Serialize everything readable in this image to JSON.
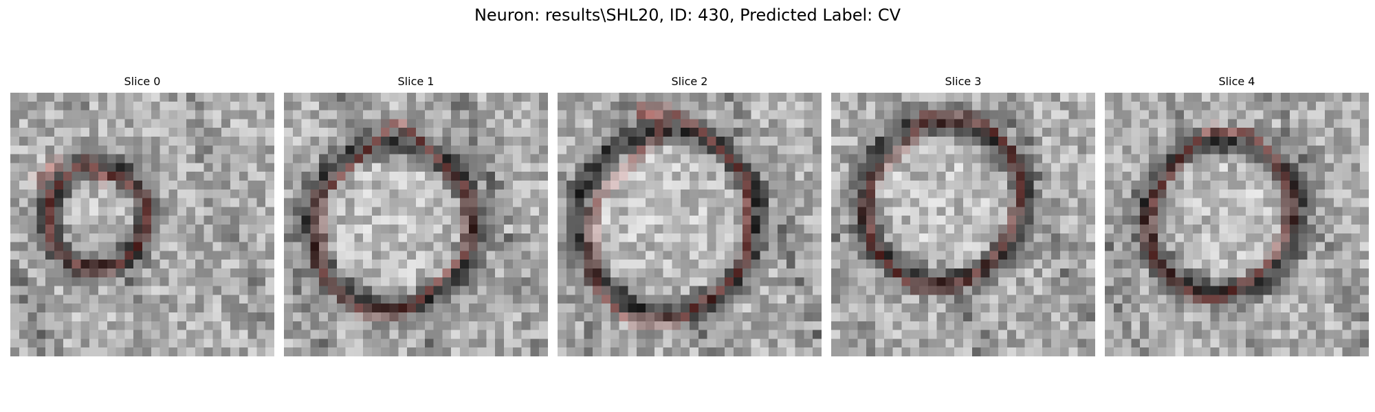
{
  "figure": {
    "title": "Neuron: results\\SHL20, ID: 430, Predicted Label: CV"
  },
  "overlay_color": "#e3120b",
  "panels": [
    {
      "title": "Slice 0",
      "contours": [
        [
          [
            10,
            9.5
          ],
          [
            10,
            10
          ],
          [
            11.5,
            9.5
          ],
          [
            12,
            9.5
          ],
          [
            13,
            10
          ],
          [
            14,
            10.5
          ],
          [
            15,
            11.5
          ],
          [
            15.5,
            13
          ],
          [
            15.5,
            15
          ],
          [
            15,
            16
          ],
          [
            15,
            17
          ],
          [
            14,
            18
          ],
          [
            13,
            19
          ],
          [
            12,
            20
          ],
          [
            11,
            20
          ],
          [
            10,
            20
          ],
          [
            9,
            20
          ],
          [
            8,
            20
          ],
          [
            7,
            19.5
          ],
          [
            6,
            18.5
          ],
          [
            5,
            17.5
          ],
          [
            4.5,
            16.5
          ],
          [
            4.5,
            15
          ],
          [
            4.5,
            13
          ],
          [
            4.5,
            11.5
          ],
          [
            5.5,
            10.5
          ],
          [
            6.5,
            9.5
          ],
          [
            7.5,
            8.5
          ],
          [
            8.5,
            8
          ],
          [
            9.5,
            8
          ]
        ],
        [
          [
            2.8,
            10
          ],
          [
            3.2,
            9.6
          ],
          [
            3.6,
            10
          ],
          [
            3.2,
            10.4
          ]
        ],
        [
          [
            4,
            9
          ],
          [
            4.4,
            8.6
          ],
          [
            4.8,
            9
          ],
          [
            4.4,
            9.4
          ]
        ],
        [
          [
            4.8,
            8.1
          ],
          [
            5.2,
            7.7
          ],
          [
            5.6,
            8.1
          ],
          [
            5.2,
            8.5
          ]
        ]
      ]
    },
    {
      "title": "Slice 1",
      "contours": [
        [
          [
            13,
            3.5
          ],
          [
            14.5,
            4.5
          ],
          [
            15.5,
            5.5
          ],
          [
            16.5,
            6.5
          ],
          [
            17.5,
            7.5
          ],
          [
            18.5,
            8.5
          ],
          [
            19,
            9.5
          ],
          [
            20,
            10.5
          ],
          [
            21,
            11
          ],
          [
            21,
            12.5
          ],
          [
            21,
            14
          ],
          [
            21,
            15.5
          ],
          [
            21,
            17
          ],
          [
            21,
            18
          ],
          [
            20,
            19
          ],
          [
            19,
            20
          ],
          [
            18,
            21
          ],
          [
            17,
            22
          ],
          [
            16,
            23
          ],
          [
            15,
            24
          ],
          [
            14,
            24.5
          ],
          [
            13,
            25
          ],
          [
            12,
            25
          ],
          [
            11,
            25
          ],
          [
            10,
            25
          ],
          [
            9,
            25
          ],
          [
            8,
            24.5
          ],
          [
            7,
            23.5
          ],
          [
            6,
            22.5
          ],
          [
            5,
            21.5
          ],
          [
            4.5,
            20.5
          ],
          [
            4,
            19.5
          ],
          [
            4,
            18.5
          ],
          [
            4,
            17
          ],
          [
            4,
            15
          ],
          [
            4,
            13
          ],
          [
            4,
            11.5
          ],
          [
            5,
            10.5
          ],
          [
            6,
            10
          ],
          [
            7,
            9
          ],
          [
            8,
            8
          ],
          [
            9,
            7
          ],
          [
            10,
            6
          ],
          [
            11,
            5
          ],
          [
            12,
            4
          ],
          [
            12.5,
            3
          ]
        ]
      ]
    },
    {
      "title": "Slice 2",
      "contours": [
        [
          [
            9,
            2
          ],
          [
            11,
            2
          ],
          [
            12,
            2
          ],
          [
            13,
            2
          ],
          [
            14,
            3
          ],
          [
            15,
            3.5
          ],
          [
            16,
            4
          ],
          [
            17,
            5
          ],
          [
            18,
            6
          ],
          [
            19,
            7
          ],
          [
            20,
            8
          ],
          [
            21,
            9
          ],
          [
            21.5,
            10
          ],
          [
            21.5,
            12
          ],
          [
            21.5,
            14
          ],
          [
            21.5,
            16
          ],
          [
            21.5,
            18
          ],
          [
            21,
            20
          ],
          [
            20,
            21
          ],
          [
            19,
            22
          ],
          [
            18,
            23
          ],
          [
            17,
            23.5
          ],
          [
            16,
            24
          ],
          [
            15,
            25
          ],
          [
            14,
            26
          ],
          [
            13,
            26
          ],
          [
            12,
            26
          ],
          [
            11,
            26
          ],
          [
            10,
            26
          ],
          [
            9,
            26
          ],
          [
            8,
            26
          ],
          [
            7,
            25
          ],
          [
            6,
            24
          ],
          [
            5,
            23
          ],
          [
            4.5,
            22
          ],
          [
            4,
            21
          ],
          [
            4,
            19.5
          ],
          [
            4,
            18
          ],
          [
            4,
            16
          ],
          [
            4,
            14
          ],
          [
            4.5,
            12.5
          ],
          [
            5,
            11.5
          ],
          [
            6,
            10.5
          ],
          [
            7,
            9.5
          ],
          [
            8,
            8.5
          ],
          [
            9,
            7
          ],
          [
            10,
            6.5
          ],
          [
            11,
            5.5
          ],
          [
            12,
            4
          ],
          [
            12,
            3
          ]
        ]
      ]
    },
    {
      "title": "Slice 3",
      "contours": [
        [
          [
            11,
            2.5
          ],
          [
            12,
            3
          ],
          [
            13,
            3
          ],
          [
            14,
            3
          ],
          [
            15,
            3
          ],
          [
            16,
            3
          ],
          [
            17,
            3.5
          ],
          [
            18,
            4
          ],
          [
            19,
            5
          ],
          [
            20,
            6
          ],
          [
            20.5,
            7
          ],
          [
            21,
            8.5
          ],
          [
            21.5,
            10
          ],
          [
            21.5,
            12
          ],
          [
            21,
            13.5
          ],
          [
            20.5,
            15
          ],
          [
            20,
            16.5
          ],
          [
            19,
            18
          ],
          [
            18,
            19.5
          ],
          [
            17,
            20.5
          ],
          [
            16,
            21
          ],
          [
            15,
            21.5
          ],
          [
            14,
            22
          ],
          [
            13,
            22
          ],
          [
            12,
            22
          ],
          [
            11,
            22
          ],
          [
            10,
            22
          ],
          [
            9,
            22
          ],
          [
            8,
            21
          ],
          [
            7,
            20
          ],
          [
            6,
            19
          ],
          [
            5,
            18
          ],
          [
            4.5,
            17
          ],
          [
            4.5,
            15.5
          ],
          [
            4,
            14
          ],
          [
            4,
            12.5
          ],
          [
            4.5,
            11
          ],
          [
            5,
            9.5
          ],
          [
            6,
            8.5
          ],
          [
            7,
            7.5
          ],
          [
            8,
            6.5
          ],
          [
            9,
            5.5
          ],
          [
            10,
            4
          ],
          [
            10,
            3
          ]
        ]
      ]
    },
    {
      "title": "Slice 4",
      "contours": [
        [
          [
            12,
            4
          ],
          [
            13.5,
            4.5
          ],
          [
            15,
            4.5
          ],
          [
            16,
            4.5
          ],
          [
            17,
            5
          ],
          [
            18,
            6
          ],
          [
            19,
            7
          ],
          [
            19.5,
            8
          ],
          [
            20,
            9
          ],
          [
            20.5,
            10
          ],
          [
            21,
            11.5
          ],
          [
            21,
            13
          ],
          [
            21,
            14.5
          ],
          [
            20.5,
            16
          ],
          [
            20,
            17
          ],
          [
            19.5,
            18
          ],
          [
            19,
            19
          ],
          [
            18,
            20
          ],
          [
            17,
            21
          ],
          [
            16,
            21.5
          ],
          [
            15,
            22
          ],
          [
            14,
            23
          ],
          [
            13,
            23.5
          ],
          [
            12,
            23.5
          ],
          [
            11,
            23.5
          ],
          [
            10,
            23
          ],
          [
            9,
            22.5
          ],
          [
            8,
            21.5
          ],
          [
            7,
            20.5
          ],
          [
            6,
            19.5
          ],
          [
            5.5,
            18.5
          ],
          [
            5,
            17
          ],
          [
            5,
            15.5
          ],
          [
            5,
            14
          ],
          [
            5.5,
            12.5
          ],
          [
            6,
            11
          ],
          [
            7,
            10
          ],
          [
            8,
            8.5
          ],
          [
            9,
            7
          ],
          [
            10,
            6
          ],
          [
            11,
            5
          ]
        ]
      ]
    }
  ]
}
